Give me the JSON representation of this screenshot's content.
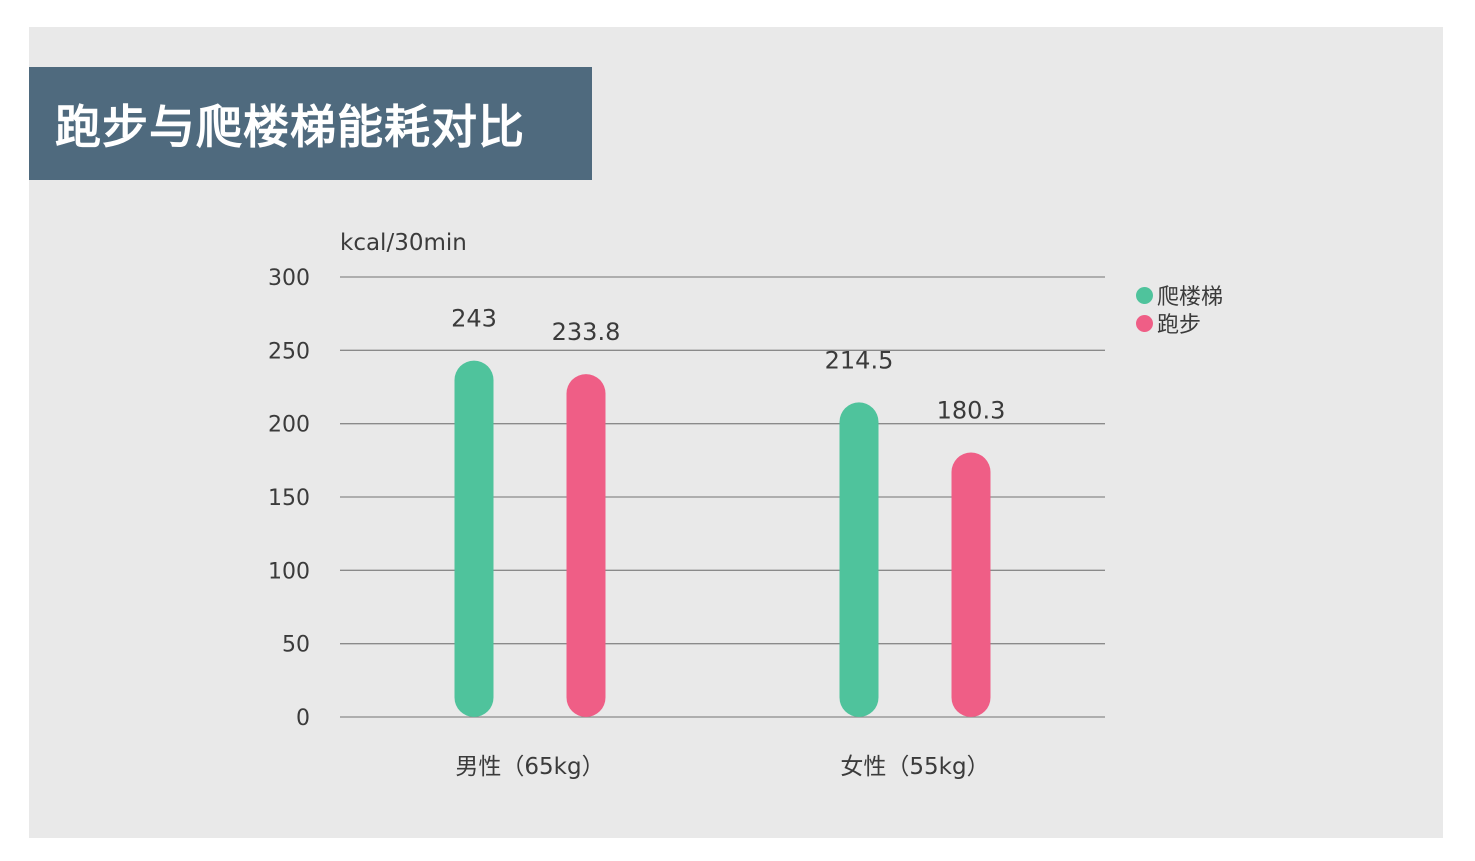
{
  "title": "跑步与爬楼梯能耗对比",
  "chart_data": {
    "type": "bar",
    "title": "跑步与爬楼梯能耗对比",
    "ylabel": "kcal/30min",
    "xlabel": "",
    "categories": [
      "男性（65kg）",
      "女性（55kg）"
    ],
    "series": [
      {
        "name": "爬楼梯",
        "values": [
          243,
          214.5
        ],
        "value_labels": [
          "243",
          "214.5"
        ],
        "color": "#4fc39c"
      },
      {
        "name": "跑步",
        "values": [
          233.8,
          180.3
        ],
        "value_labels": [
          "233.8",
          "180.3"
        ],
        "color": "#ef5e86"
      }
    ],
    "ylim": [
      0,
      300
    ],
    "yticks": [
      0,
      50,
      100,
      150,
      200,
      250,
      300
    ],
    "ytick_labels": [
      "0",
      "50",
      "100",
      "150",
      "200",
      "250",
      "300"
    ],
    "grid": true,
    "legend_position": "right"
  },
  "colors": {
    "background": "#e9e9e9",
    "title_bar": "#4f6a7e",
    "gridline": "#8a8a8a"
  }
}
